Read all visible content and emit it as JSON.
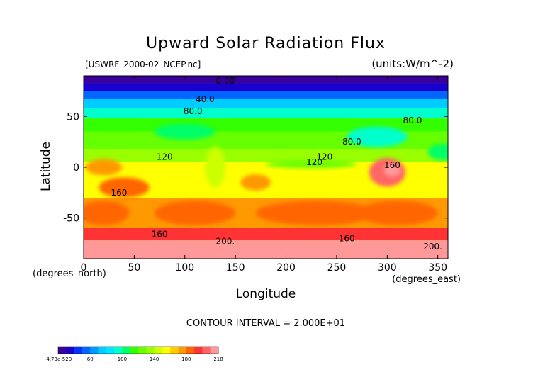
{
  "chart_data": {
    "type": "heatmap",
    "title": "Upward Solar Radiation Flux",
    "subtitle_left": "[USWRF_2000-02_NCEP.nc]",
    "subtitle_right": "(units:W/m^-2)",
    "xlabel": "Longitude",
    "ylabel": "Latitude",
    "x_unit_label": "(degrees_east)",
    "y_unit_label": "(degrees_north)",
    "xlim": [
      0,
      360
    ],
    "ylim": [
      -90,
      90
    ],
    "x_ticks": [
      0,
      50,
      100,
      150,
      200,
      250,
      300,
      350
    ],
    "y_ticks": [
      -50,
      0,
      50
    ],
    "contour_interval_text": "CONTOUR INTERVAL = 2.000E+01",
    "contour_labels": [
      {
        "text": "0.00",
        "lon": 140,
        "lat": 85
      },
      {
        "text": "40.0",
        "lon": 120,
        "lat": 67
      },
      {
        "text": "80.0",
        "lon": 108,
        "lat": 55
      },
      {
        "text": "80.0",
        "lon": 325,
        "lat": 46
      },
      {
        "text": "80.0",
        "lon": 265,
        "lat": 25
      },
      {
        "text": "120",
        "lon": 80,
        "lat": 10
      },
      {
        "text": "120",
        "lon": 238,
        "lat": 10
      },
      {
        "text": "120",
        "lon": 228,
        "lat": 5
      },
      {
        "text": "160",
        "lon": 305,
        "lat": 2
      },
      {
        "text": "160",
        "lon": 35,
        "lat": -25
      },
      {
        "text": "160",
        "lon": 75,
        "lat": -66
      },
      {
        "text": "160",
        "lon": 260,
        "lat": -70
      },
      {
        "text": "200.",
        "lon": 140,
        "lat": -73
      },
      {
        "text": "200.",
        "lon": 345,
        "lat": -78
      }
    ],
    "colorbar": {
      "tick_labels": [
        "-4.73e-520",
        "60",
        "100",
        "140",
        "180",
        "218"
      ],
      "min": -0.0,
      "max": 218,
      "colors": [
        "#3a0099",
        "#1a00cc",
        "#0033ff",
        "#0066ff",
        "#0099ff",
        "#00ccff",
        "#00e5ff",
        "#00ffcc",
        "#00ff66",
        "#33ff00",
        "#66ff00",
        "#99ff00",
        "#ccff00",
        "#ffff00",
        "#ffcc00",
        "#ff9900",
        "#ff6600",
        "#ff3333",
        "#ff6666",
        "#ff9999"
      ]
    },
    "latitude_bands": [
      {
        "lat_top": 90,
        "lat_bottom": 83,
        "value": 0
      },
      {
        "lat_top": 83,
        "lat_bottom": 75,
        "value": 20
      },
      {
        "lat_top": 75,
        "lat_bottom": 67,
        "value": 40
      },
      {
        "lat_top": 67,
        "lat_bottom": 58,
        "value": 60
      },
      {
        "lat_top": 58,
        "lat_bottom": 48,
        "value": 80
      },
      {
        "lat_top": 48,
        "lat_bottom": 35,
        "value": 100
      },
      {
        "lat_top": 35,
        "lat_bottom": 18,
        "value": 110
      },
      {
        "lat_top": 18,
        "lat_bottom": 5,
        "value": 130
      },
      {
        "lat_top": 5,
        "lat_bottom": -10,
        "value": 150
      },
      {
        "lat_top": -10,
        "lat_bottom": -30,
        "value": 150
      },
      {
        "lat_top": -30,
        "lat_bottom": -60,
        "value": 170
      },
      {
        "lat_top": -60,
        "lat_bottom": -72,
        "value": 190
      },
      {
        "lat_top": -72,
        "lat_bottom": -90,
        "value": 215
      }
    ],
    "blobs": [
      {
        "lon": 20,
        "lat": 0,
        "rlon": 18,
        "rlat": 8,
        "value": 170
      },
      {
        "lon": 40,
        "lat": -20,
        "rlon": 25,
        "rlat": 10,
        "value": 180
      },
      {
        "lon": 20,
        "lat": -45,
        "rlon": 25,
        "rlat": 12,
        "value": 185
      },
      {
        "lon": 110,
        "lat": -45,
        "rlon": 40,
        "rlat": 12,
        "value": 185
      },
      {
        "lon": 230,
        "lat": -45,
        "rlon": 60,
        "rlat": 12,
        "value": 185
      },
      {
        "lon": 310,
        "lat": -45,
        "rlon": 40,
        "rlat": 12,
        "value": 180
      },
      {
        "lon": 300,
        "lat": -5,
        "rlon": 18,
        "rlat": 14,
        "value": 200
      },
      {
        "lon": 305,
        "lat": -3,
        "rlon": 8,
        "rlat": 6,
        "value": 212
      },
      {
        "lon": 225,
        "lat": 3,
        "rlon": 45,
        "rlat": 4,
        "value": 110
      },
      {
        "lon": 100,
        "lat": 35,
        "rlon": 30,
        "rlat": 8,
        "value": 90
      },
      {
        "lon": 290,
        "lat": 30,
        "rlon": 30,
        "rlat": 10,
        "value": 80
      },
      {
        "lon": 130,
        "lat": 0,
        "rlon": 10,
        "rlat": 20,
        "value": 135
      },
      {
        "lon": 170,
        "lat": -15,
        "rlon": 15,
        "rlat": 8,
        "value": 165
      },
      {
        "lon": 355,
        "lat": 15,
        "rlon": 15,
        "rlat": 8,
        "value": 95
      }
    ]
  }
}
